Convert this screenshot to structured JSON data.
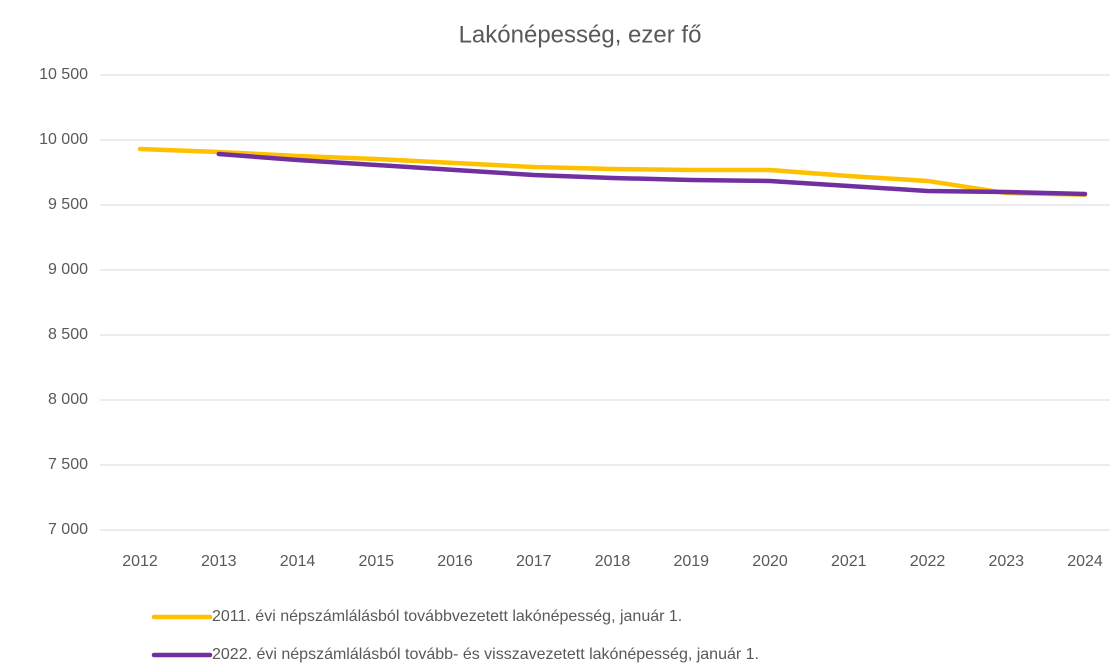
{
  "chart_data": {
    "type": "line",
    "title": "Lakónépesség, ezer fő",
    "categories": [
      "2012",
      "2013",
      "2014",
      "2015",
      "2016",
      "2017",
      "2018",
      "2019",
      "2020",
      "2021",
      "2022",
      "2023",
      "2024"
    ],
    "series": [
      {
        "name": "2011. évi népszámlálásból továbbvezetett lakónépesség, január 1.",
        "color": "#FFC000",
        "values": [
          9931,
          9908,
          9877,
          9854,
          9823,
          9792,
          9777,
          9769,
          9769,
          9723,
          9685,
          9592,
          9580
        ]
      },
      {
        "name": "2022. évi népszámlálásból tovább- és visszavezetett lakónépesség, január 1.",
        "color": "#7030A0",
        "values": [
          null,
          9892,
          9846,
          9808,
          9769,
          9731,
          9708,
          9692,
          9685,
          9646,
          9608,
          9600,
          9585
        ]
      }
    ],
    "ylim": [
      7000,
      10500
    ],
    "yticks": [
      {
        "value": 7000,
        "label": "7 000"
      },
      {
        "value": 7500,
        "label": "7 500"
      },
      {
        "value": 8000,
        "label": "8 000"
      },
      {
        "value": 8500,
        "label": "8 500"
      },
      {
        "value": 9000,
        "label": "9 000"
      },
      {
        "value": 9500,
        "label": "9 500"
      },
      {
        "value": 10000,
        "label": "10 000"
      },
      {
        "value": 10500,
        "label": "10 500"
      }
    ],
    "grid": true,
    "legend": "bottom"
  }
}
